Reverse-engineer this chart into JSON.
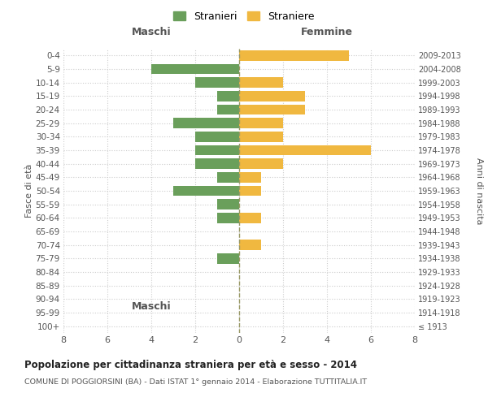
{
  "age_groups": [
    "100+",
    "95-99",
    "90-94",
    "85-89",
    "80-84",
    "75-79",
    "70-74",
    "65-69",
    "60-64",
    "55-59",
    "50-54",
    "45-49",
    "40-44",
    "35-39",
    "30-34",
    "25-29",
    "20-24",
    "15-19",
    "10-14",
    "5-9",
    "0-4"
  ],
  "birth_years": [
    "≤ 1913",
    "1914-1918",
    "1919-1923",
    "1924-1928",
    "1929-1933",
    "1934-1938",
    "1939-1943",
    "1944-1948",
    "1949-1953",
    "1954-1958",
    "1959-1963",
    "1964-1968",
    "1969-1973",
    "1974-1978",
    "1979-1983",
    "1984-1988",
    "1989-1993",
    "1994-1998",
    "1999-2003",
    "2004-2008",
    "2009-2013"
  ],
  "maschi": [
    0,
    0,
    0,
    0,
    0,
    1,
    0,
    0,
    1,
    1,
    3,
    1,
    2,
    2,
    2,
    3,
    1,
    1,
    2,
    4,
    0
  ],
  "femmine": [
    0,
    0,
    0,
    0,
    0,
    0,
    1,
    0,
    1,
    0,
    1,
    1,
    2,
    6,
    2,
    2,
    3,
    3,
    2,
    0,
    5
  ],
  "maschi_color": "#6a9f5b",
  "femmine_color": "#f0b840",
  "title": "Popolazione per cittadinanza straniera per età e sesso - 2014",
  "subtitle": "COMUNE DI POGGIORSINI (BA) - Dati ISTAT 1° gennaio 2014 - Elaborazione TUTTITALIA.IT",
  "xlabel_left": "Maschi",
  "xlabel_right": "Femmine",
  "ylabel_left": "Fasce di età",
  "ylabel_right": "Anni di nascita",
  "legend_stranieri": "Stranieri",
  "legend_straniere": "Straniere",
  "xlim": 8,
  "bg_color": "#ffffff",
  "grid_color": "#cccccc",
  "bar_height": 0.75
}
